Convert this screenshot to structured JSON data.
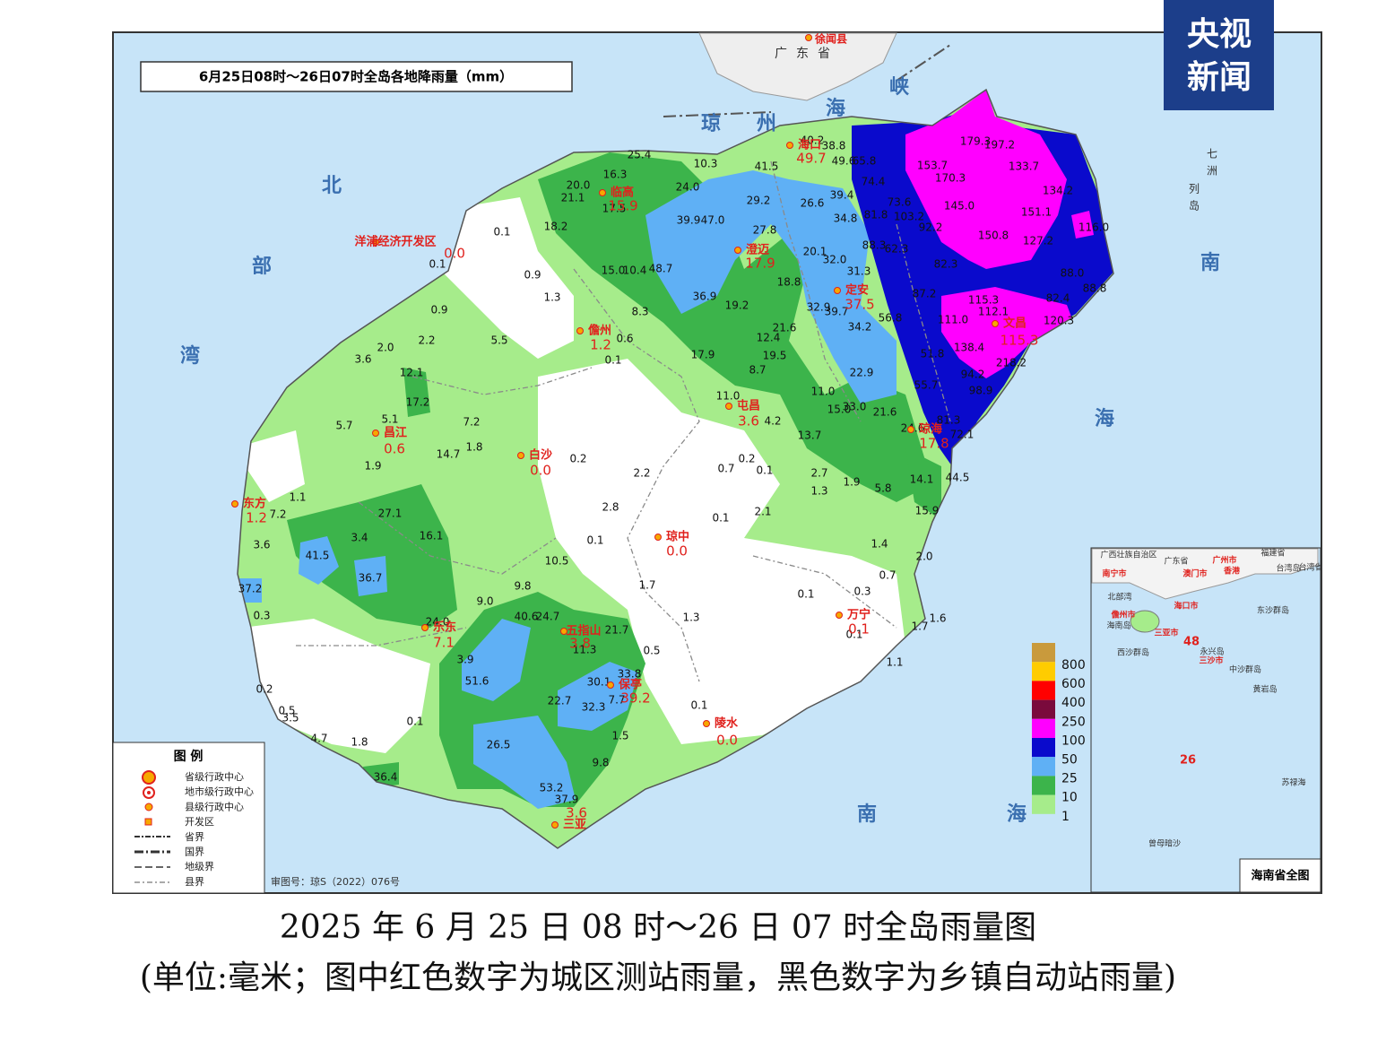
{
  "logo": {
    "line1": "央视",
    "line2": "新闻"
  },
  "map": {
    "title": "6月25日08时～26日07时全岛各地降雨量（mm）",
    "cities": [
      {
        "name": "海口",
        "value": "49.7"
      },
      {
        "name": "临高",
        "value": "15.9"
      },
      {
        "name": "洋浦经济开发区",
        "value": "0.0"
      },
      {
        "name": "澄迈",
        "value": "17.9"
      },
      {
        "name": "定安",
        "value": "37.5"
      },
      {
        "name": "儋州",
        "value": "1.2"
      },
      {
        "name": "文昌",
        "value": "115.3"
      },
      {
        "name": "屯昌",
        "value": "3.6"
      },
      {
        "name": "昌江",
        "value": "0.6"
      },
      {
        "name": "白沙",
        "value": "0.0"
      },
      {
        "name": "琼海",
        "value": "17.8"
      },
      {
        "name": "东方",
        "value": "1.2"
      },
      {
        "name": "琼中",
        "value": "0.0"
      },
      {
        "name": "万宁",
        "value": "0.1"
      },
      {
        "name": "乐东",
        "value": "7.1"
      },
      {
        "name": "五指山",
        "value": "3.8"
      },
      {
        "name": "保亭",
        "value": "39.2"
      },
      {
        "name": "陵水",
        "value": "0.0"
      },
      {
        "name": "三亚",
        "value": "3.6"
      }
    ],
    "stations": [
      "25.4",
      "10.3",
      "16.3",
      "20.0",
      "21.1",
      "24.0",
      "17.5",
      "41.5",
      "29.2",
      "26.6",
      "39.4",
      "34.8",
      "39.9",
      "47.0",
      "18.2",
      "27.8",
      "0.1",
      "0.1",
      "0.9",
      "15.0",
      "10.4",
      "48.7",
      "20.1",
      "32.0",
      "31.3",
      "1.3",
      "36.9",
      "18.8",
      "19.2",
      "32.9",
      "39.7",
      "0.9",
      "8.3",
      "5.5",
      "2.2",
      "0.6",
      "21.6",
      "12.4",
      "34.2",
      "2.0",
      "3.6",
      "0.1",
      "17.9",
      "19.5",
      "12.1",
      "8.7",
      "22.9",
      "17.2",
      "11.0",
      "11.0",
      "15.0",
      "33.0",
      "21.6",
      "5.1",
      "7.2",
      "4.2",
      "5.7",
      "24.6",
      "1.8",
      "14.7",
      "13.7",
      "0.2",
      "1.9",
      "0.2",
      "2.2",
      "0.7",
      "0.1",
      "2.7",
      "1.9",
      "5.8",
      "14.1",
      "44.5",
      "1.3",
      "1.1",
      "7.2",
      "27.1",
      "2.8",
      "2.1",
      "0.1",
      "15.9",
      "3.4",
      "16.1",
      "0.1",
      "3.6",
      "1.4",
      "2.0",
      "41.5",
      "36.7",
      "10.5",
      "37.2",
      "0.7",
      "1.7",
      "9.8",
      "0.1",
      "0.3",
      "9.0",
      "0.3",
      "1.3",
      "40.6",
      "24.7",
      "24.0",
      "21.7",
      "1.6",
      "1.7",
      "0.1",
      "11.3",
      "0.5",
      "3.9",
      "33.8",
      "1.1",
      "51.6",
      "30.1",
      "0.2",
      "7.7",
      "22.7",
      "32.3",
      "0.1",
      "0.5",
      "3.5",
      "0.1",
      "4.7",
      "1.8",
      "1.5",
      "26.5",
      "9.8",
      "36.4",
      "53.2",
      "37.9",
      "40.2",
      "38.8",
      "49.6",
      "65.8",
      "74.4",
      "73.6",
      "81.8",
      "103.2",
      "179.3",
      "197.2",
      "153.7",
      "170.3",
      "133.7",
      "134.2",
      "145.0",
      "151.1",
      "92.2",
      "150.8",
      "127.2",
      "116.0",
      "88.3",
      "62.3",
      "82.3",
      "88.0",
      "88.8",
      "87.2",
      "115.3",
      "112.1",
      "82.4",
      "120.3",
      "111.0",
      "138.4",
      "218.2",
      "94.2",
      "55.7",
      "98.9",
      "81.3",
      "72.1",
      "51.8",
      "56.8"
    ],
    "places": {
      "province": "广东省",
      "county": "徐闻县",
      "islands": "七洲列岛"
    },
    "seas": [
      "琼州海峡",
      "北部湾",
      "南海",
      "南海"
    ],
    "scale": {
      "labels": [
        "800",
        "600",
        "400",
        "250",
        "100",
        "50",
        "25",
        "10",
        "1"
      ],
      "colors": [
        "#c99a3c",
        "#ffcc00",
        "#ff0000",
        "#7a0a3c",
        "#ff00ff",
        "#0a0acc",
        "#5fb0f5",
        "#3cb44b",
        "#a6ec8b"
      ]
    },
    "legend": {
      "title": "图 例",
      "items": [
        "省级行政中心",
        "地市级行政中心",
        "县级行政中心",
        "开发区",
        "省界",
        "国界",
        "地级界",
        "县界"
      ]
    },
    "approval": "审图号：琼S（2022）076号",
    "inset": {
      "title": "海南省全图",
      "labels": [
        "广西壮族自治区",
        "广东省",
        "福建省",
        "台湾省",
        "南宁市",
        "广州市",
        "澳门市",
        "香港",
        "台湾岛",
        "北部湾",
        "海口市",
        "儋州市",
        "海南岛",
        "三亚市",
        "东沙群岛",
        "48",
        "西沙群岛",
        "永兴岛",
        "三沙市",
        "中沙群岛",
        "黄岩岛",
        "26",
        "苏禄海",
        "曾母暗沙"
      ]
    }
  },
  "caption": {
    "line1": "2025 年 6 月 25 日 08 时～26 日 07 时全岛雨量图",
    "line2": "(单位:毫米；图中红色数字为城区测站雨量，黑色数字为乡镇自动站雨量)"
  }
}
